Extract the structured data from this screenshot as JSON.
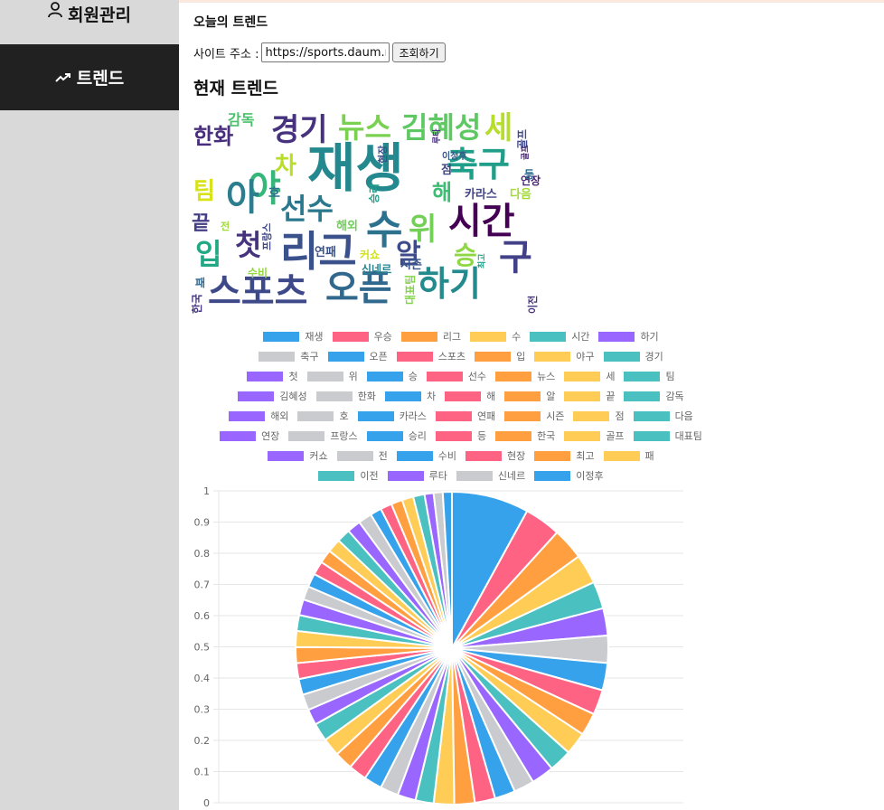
{
  "sidebar": {
    "items": [
      {
        "label": "회원관리",
        "icon": "person-icon",
        "active": false
      },
      {
        "label": "트렌드",
        "icon": "trending-up-icon",
        "active": true
      }
    ]
  },
  "main": {
    "heading": "오늘의 트렌드",
    "url_label": "사이트 주소 :",
    "url_value": "https://sports.daum.net",
    "query_button": "조회하기",
    "section_title": "현재 트렌드"
  },
  "wordcloud": {
    "words": [
      {
        "text": "재생",
        "color": "#23898e",
        "size": 58
      },
      {
        "text": "시간",
        "color": "#440154",
        "size": 40
      },
      {
        "text": "리그",
        "color": "#3b518b",
        "size": 46
      },
      {
        "text": "수",
        "color": "#2c728e",
        "size": 44
      },
      {
        "text": "스포츠",
        "color": "#3e4989",
        "size": 40
      },
      {
        "text": "오픈",
        "color": "#31688e",
        "size": 40
      },
      {
        "text": "하기",
        "color": "#238a8d",
        "size": 38
      },
      {
        "text": "축구",
        "color": "#1f9e89",
        "size": 38
      },
      {
        "text": "경기",
        "color": "#46327e",
        "size": 34
      },
      {
        "text": "뉴스",
        "color": "#7ad151",
        "size": 32
      },
      {
        "text": "김혜성",
        "color": "#5ec962",
        "size": 32
      },
      {
        "text": "세",
        "color": "#b5de2b",
        "size": 34
      },
      {
        "text": "야",
        "color": "#35b779",
        "size": 40
      },
      {
        "text": "아",
        "color": "#2c7d8e",
        "size": 40
      },
      {
        "text": "선수",
        "color": "#2a788e",
        "size": 32
      },
      {
        "text": "위",
        "color": "#73d056",
        "size": 34
      },
      {
        "text": "첫",
        "color": "#46337e",
        "size": 32
      },
      {
        "text": "입",
        "color": "#22a884",
        "size": 32
      },
      {
        "text": "알",
        "color": "#3e4a89",
        "size": 30
      },
      {
        "text": "승",
        "color": "#8fd744",
        "size": 28
      },
      {
        "text": "구",
        "color": "#424086",
        "size": 40
      },
      {
        "text": "한화",
        "color": "#472d7b",
        "size": 24
      },
      {
        "text": "차",
        "color": "#b8de29",
        "size": 26
      },
      {
        "text": "해",
        "color": "#3dbc74",
        "size": 24
      },
      {
        "text": "팀",
        "color": "#d8e219",
        "size": 26
      },
      {
        "text": "감독",
        "color": "#4ac16d",
        "size": 16
      },
      {
        "text": "끝",
        "color": "#433e85",
        "size": 22
      },
      {
        "text": "카라스",
        "color": "#414487",
        "size": 13
      },
      {
        "text": "다음",
        "color": "#a2da37",
        "size": 13
      },
      {
        "text": "해외",
        "color": "#6ece58",
        "size": 13
      },
      {
        "text": "연패",
        "color": "#3b528b",
        "size": 13
      },
      {
        "text": "시즌",
        "color": "#39568c",
        "size": 13
      },
      {
        "text": "연장",
        "color": "#482173",
        "size": 12
      },
      {
        "text": "수비",
        "color": "#93d741",
        "size": 12
      },
      {
        "text": "커쇼",
        "color": "#d0e11c",
        "size": 12
      },
      {
        "text": "신네르",
        "color": "#26828e",
        "size": 12
      },
      {
        "text": "이정후",
        "color": "#38588c",
        "size": 10
      },
      {
        "text": "패",
        "color": "#31688e",
        "size": 12
      },
      {
        "text": "점",
        "color": "#404688",
        "size": 13
      },
      {
        "text": "등",
        "color": "#2e6e8e",
        "size": 12
      },
      {
        "text": "호",
        "color": "#2d708e",
        "size": 14
      },
      {
        "text": "전",
        "color": "#a0da39",
        "size": 11
      }
    ],
    "vertical_words": [
      {
        "text": "승리",
        "color": "#1fa088",
        "size": 12
      },
      {
        "text": "프랑스",
        "color": "#3f4788",
        "size": 11
      },
      {
        "text": "골프",
        "color": "#3f4889",
        "size": 12
      },
      {
        "text": "현장",
        "color": "#3d4e8a",
        "size": 11
      },
      {
        "text": "루타",
        "color": "#472f7d",
        "size": 9
      },
      {
        "text": "골프",
        "color": "#482475",
        "size": 9
      },
      {
        "text": "최고",
        "color": "#1fa187",
        "size": 9
      },
      {
        "text": "한국",
        "color": "#453781",
        "size": 12
      },
      {
        "text": "대표팀",
        "color": "#84d44b",
        "size": 12
      },
      {
        "text": "이전",
        "color": "#46307e",
        "size": 11
      }
    ]
  },
  "chart_data": {
    "type": "pie",
    "title": "",
    "yticks": [
      "1",
      "0.9",
      "0.8",
      "0.7",
      "0.6",
      "0.5",
      "0.4",
      "0.3",
      "0.2",
      "0.1",
      "0"
    ],
    "ylim": [
      0,
      1
    ],
    "grid": true,
    "legend_position": "top",
    "palette": [
      "#36a2eb",
      "#ff6384",
      "#ff9f40",
      "#ffcd56",
      "#4bc0c0",
      "#9966ff",
      "#c9cbcf"
    ],
    "labels": [
      "재생",
      "우승",
      "리그",
      "수",
      "시간",
      "하기",
      "축구",
      "오픈",
      "스포츠",
      "입",
      "야구",
      "경기",
      "첫",
      "위",
      "승",
      "선수",
      "뉴스",
      "세",
      "팀",
      "김혜성",
      "한화",
      "차",
      "해",
      "알",
      "끝",
      "감독",
      "해외",
      "호",
      "카라스",
      "연패",
      "시즌",
      "점",
      "다음",
      "연장",
      "프랑스",
      "승리",
      "등",
      "한국",
      "골프",
      "대표팀",
      "커쇼",
      "전",
      "수비",
      "현장",
      "최고",
      "패",
      "이전",
      "루타",
      "신네르",
      "이정후"
    ],
    "values": [
      34,
      16,
      14,
      13,
      12,
      12,
      12,
      12,
      11,
      10,
      10,
      10,
      10,
      9,
      9,
      9,
      9,
      9,
      8,
      8,
      8,
      8,
      8,
      8,
      8,
      8,
      7,
      7,
      7,
      7,
      7,
      7,
      7,
      7,
      6,
      6,
      6,
      6,
      6,
      6,
      6,
      6,
      5,
      5,
      5,
      5,
      5,
      4,
      4,
      4
    ]
  }
}
